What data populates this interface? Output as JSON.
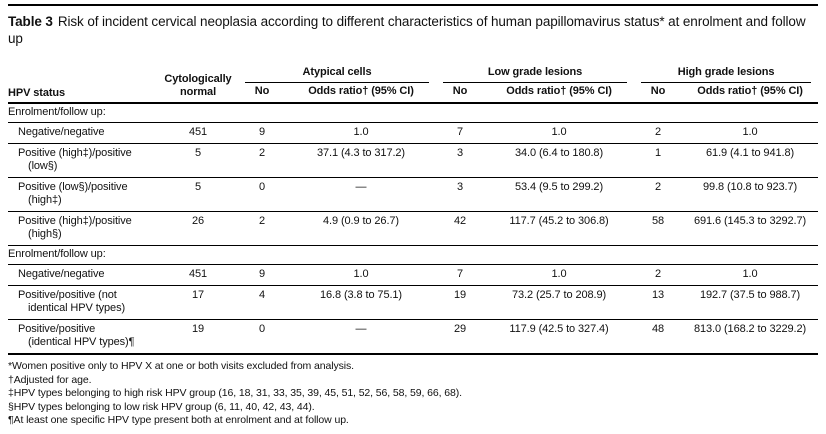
{
  "title": {
    "label": "Table 3",
    "text": "Risk of incident cervical neoplasia according to different characteristics of human papillomavirus status* at enrolment and follow up"
  },
  "table": {
    "headers": {
      "hpv_status": "HPV status",
      "cytologically_normal": "Cytologically normal",
      "groups": [
        {
          "label": "Atypical cells",
          "no": "No",
          "odds_ratio": "Odds ratio† (95% CI)"
        },
        {
          "label": "Low grade lesions",
          "no": "No",
          "odds_ratio": "Odds ratio† (95% CI)"
        },
        {
          "label": "High grade lesions",
          "no": "No",
          "odds_ratio": "Odds ratio† (95% CI)"
        }
      ]
    },
    "sections": [
      {
        "header": "Enrolment/follow up:",
        "rows": [
          {
            "label": "Negative/negative",
            "values": [
              "451",
              "9",
              "1.0",
              "7",
              "1.0",
              "2",
              "1.0"
            ]
          },
          {
            "label": "Positive (high‡)/positive\n(low§)",
            "values": [
              "5",
              "2",
              "37.1 (4.3 to 317.2)",
              "3",
              "34.0 (6.4 to 180.8)",
              "1",
              "61.9 (4.1 to 941.8)"
            ]
          },
          {
            "label": "Positive (low§)/positive\n(high‡)",
            "values": [
              "5",
              "0",
              "—",
              "3",
              "53.4 (9.5 to 299.2)",
              "2",
              "99.8 (10.8 to 923.7)"
            ]
          },
          {
            "label": "Positive (high‡)/positive\n(high§)",
            "values": [
              "26",
              "2",
              "4.9 (0.9 to 26.7)",
              "42",
              "117.7 (45.2 to 306.8)",
              "58",
              "691.6 (145.3 to 3292.7)"
            ]
          }
        ]
      },
      {
        "header": "Enrolment/follow up:",
        "rows": [
          {
            "label": "Negative/negative",
            "values": [
              "451",
              "9",
              "1.0",
              "7",
              "1.0",
              "2",
              "1.0"
            ]
          },
          {
            "label": "Positive/positive (not\nidentical HPV types)",
            "values": [
              "17",
              "4",
              "16.8 (3.8 to 75.1)",
              "19",
              "73.2 (25.7 to 208.9)",
              "13",
              "192.7 (37.5 to 988.7)"
            ]
          },
          {
            "label": "Positive/positive\n(identical HPV types)¶",
            "values": [
              "19",
              "0",
              "—",
              "29",
              "117.9 (42.5 to 327.4)",
              "48",
              "813.0 (168.2 to 3229.2)"
            ]
          }
        ]
      }
    ]
  },
  "footnotes": [
    "*Women positive only to HPV X at one or both visits excluded from analysis.",
    "†Adjusted for age.",
    "‡HPV types belonging to high risk HPV group (16, 18, 31, 33, 35, 39, 45, 51, 52, 56, 58, 59, 66, 68).",
    "§HPV types belonging to low risk HPV group (6, 11, 40, 42, 43, 44).",
    "¶At least one specific HPV type present both at enrolment and at follow up."
  ]
}
